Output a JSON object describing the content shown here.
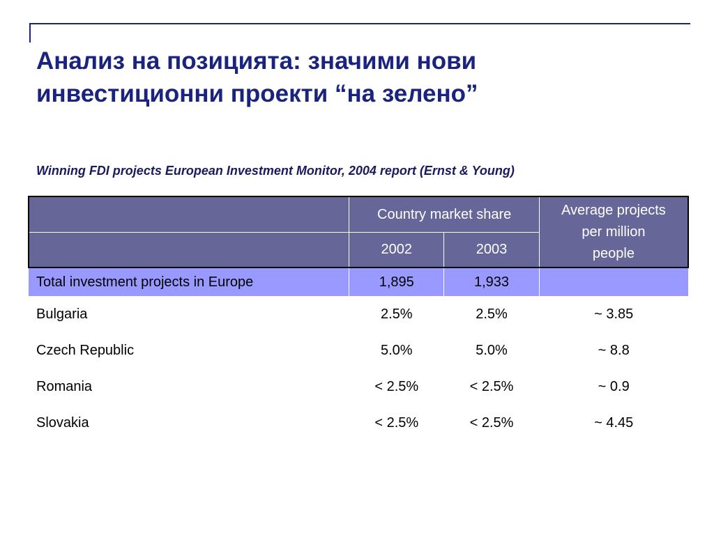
{
  "title": {
    "line1": "Анализ на позицията: значими нови",
    "line2": "инвестиционни проекти “на зелено”"
  },
  "subtitle": "Winning FDI projects European Investment Monitor, 2004 report (Ernst & Young)",
  "table": {
    "header": {
      "market_share": "Country market share",
      "year_2002": "2002",
      "year_2003": "2003",
      "avg_line1": "Average projects",
      "avg_line2": "per million",
      "avg_line3": "people"
    },
    "total_row": {
      "label": "Total investment projects in Europe",
      "v2002": "1,895",
      "v2003": "1,933",
      "avg": ""
    },
    "rows": [
      {
        "country": "Bulgaria",
        "v2002": "2.5%",
        "v2003": "2.5%",
        "avg": "~ 3.85"
      },
      {
        "country": "Czech Republic",
        "v2002": "5.0%",
        "v2003": "5.0%",
        "avg": "~ 8.8"
      },
      {
        "country": "Romania",
        "v2002": "< 2.5%",
        "v2003": "< 2.5%",
        "avg": "~ 0.9"
      },
      {
        "country": "Slovakia",
        "v2002": "< 2.5%",
        "v2003": "< 2.5%",
        "avg": "~ 4.45"
      }
    ]
  }
}
